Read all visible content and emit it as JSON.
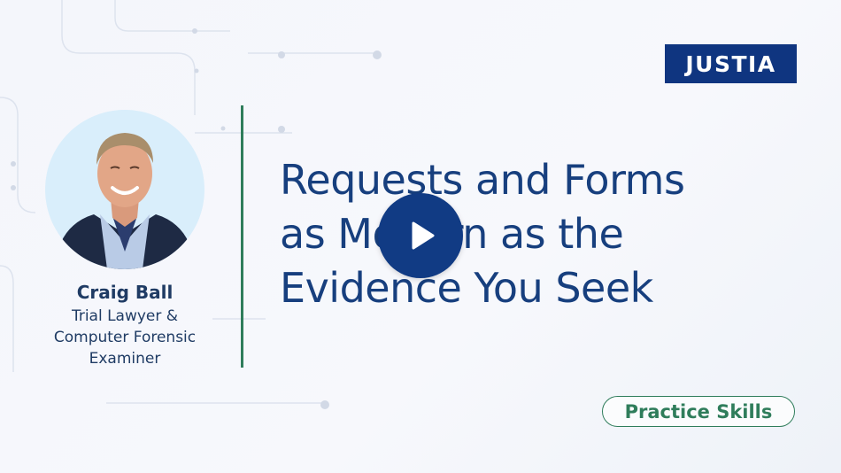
{
  "brand": {
    "logo_text": "JUSTIA",
    "logo_color": "#0f3580"
  },
  "presenter": {
    "name": "Craig Ball",
    "title": "Trial Lawyer &\nComputer Forensic\nExaminer"
  },
  "video": {
    "title": "Requests and Forms\nas Modern as the\nEvidence You Seek",
    "play_icon": "play-icon"
  },
  "category_badge": "Practice Skills",
  "colors": {
    "title_text": "#173f7e",
    "accent_green": "#2f7d5b",
    "play_button": "#113b84"
  }
}
